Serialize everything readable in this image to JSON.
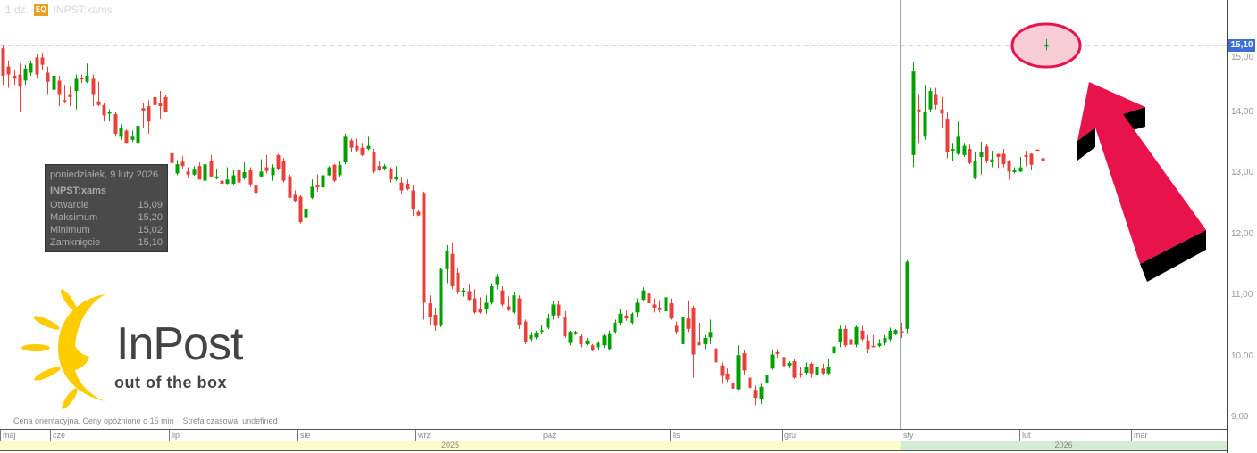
{
  "header": {
    "interval": "1 dz.",
    "badge": "EQ",
    "symbol": "INPST:xams"
  },
  "tooltip": {
    "date": "poniedziałek, 9 luty 2026",
    "symbol": "INPST:xams",
    "rows": [
      {
        "label": "Otwarcie",
        "value": "15,09"
      },
      {
        "label": "Maksimum",
        "value": "15,20"
      },
      {
        "label": "Minimum",
        "value": "15,02"
      },
      {
        "label": "Zamknięcie",
        "value": "15,10"
      }
    ]
  },
  "footer_note": "Cena orientacyjna. Ceny opóźnione o 15 min    Strefa czasowa: undefined",
  "logo": {
    "name": "InPost",
    "tagline": "out of the box"
  },
  "colors": {
    "up": "#00a000",
    "down": "#e8403a",
    "price_line": "#e8403a",
    "price_tag": "#3d6fd6",
    "annotation": "#e8134a",
    "logo_sun": "#ffcc00"
  },
  "chart_data": {
    "type": "candlestick",
    "ylim": [
      8.8,
      15.6
    ],
    "y_ticks": [
      "15,00",
      "14,00",
      "13,00",
      "12,00",
      "11,00",
      "10,00",
      "9,00"
    ],
    "y_tick_values": [
      15,
      14,
      13,
      12,
      11,
      10,
      9
    ],
    "last_price": 15.1,
    "last_price_label": "15,10",
    "months": [
      "maj",
      "cze",
      "lip",
      "sie",
      "wrz",
      "paź",
      "lis",
      "gru",
      "sty",
      "lut",
      "mar"
    ],
    "years": [
      "2025",
      "2026"
    ],
    "candles_2025": [
      [
        15.05,
        15.1,
        14.45,
        14.6
      ],
      [
        14.75,
        14.85,
        14.4,
        14.62
      ],
      [
        14.6,
        14.7,
        14.45,
        14.55
      ],
      [
        14.62,
        14.8,
        14.0,
        14.42
      ],
      [
        14.52,
        14.78,
        14.45,
        14.72
      ],
      [
        14.65,
        14.85,
        14.6,
        14.8
      ],
      [
        14.9,
        14.95,
        14.55,
        14.62
      ],
      [
        14.9,
        14.98,
        14.7,
        14.78
      ],
      [
        14.65,
        14.75,
        14.3,
        14.5
      ],
      [
        14.37,
        14.75,
        14.3,
        14.6
      ],
      [
        14.52,
        14.6,
        14.1,
        14.3
      ],
      [
        14.2,
        14.45,
        14.15,
        14.18
      ],
      [
        14.3,
        14.42,
        14.1,
        14.25
      ],
      [
        14.35,
        14.62,
        14.05,
        14.55
      ],
      [
        14.56,
        14.62,
        14.48,
        14.54
      ],
      [
        14.5,
        14.8,
        14.48,
        14.6
      ],
      [
        14.55,
        14.62,
        14.1,
        14.3
      ],
      [
        14.18,
        14.5,
        14.1,
        14.12
      ],
      [
        14.12,
        14.15,
        13.85,
        13.95
      ],
      [
        13.98,
        14.05,
        13.85,
        14.0
      ],
      [
        13.97,
        14.0,
        13.6,
        13.65
      ],
      [
        13.6,
        13.8,
        13.55,
        13.75
      ],
      [
        13.7,
        13.72,
        13.5,
        13.5
      ],
      [
        13.55,
        13.7,
        13.52,
        13.6
      ],
      [
        13.5,
        13.82,
        13.5,
        13.78
      ],
      [
        14.07,
        14.15,
        13.75,
        14.03
      ],
      [
        14.1,
        14.2,
        13.65,
        13.85
      ],
      [
        14.25,
        14.35,
        13.8,
        14.12
      ],
      [
        14.15,
        14.35,
        13.9,
        14.1
      ],
      [
        14.25,
        14.28,
        14.0,
        14.0
      ],
      [
        13.33,
        13.5,
        13.15,
        13.17
      ],
      [
        13.0,
        13.22,
        12.97,
        13.15
      ],
      [
        13.19,
        13.28,
        13.08,
        13.12
      ],
      [
        13.03,
        13.1,
        12.92,
        12.98
      ],
      [
        12.98,
        13.12,
        12.96,
        13.06
      ],
      [
        13.12,
        13.18,
        12.9,
        12.9
      ],
      [
        12.88,
        13.25,
        12.86,
        13.15
      ],
      [
        13.2,
        13.3,
        12.93,
        12.95
      ],
      [
        12.92,
        13.07,
        12.9,
        12.95
      ],
      [
        12.88,
        12.92,
        12.72,
        12.83
      ],
      [
        12.83,
        13.1,
        12.82,
        12.9
      ],
      [
        12.83,
        13.05,
        12.81,
        12.97
      ],
      [
        13.05,
        13.06,
        12.84,
        12.85
      ],
      [
        12.92,
        13.18,
        12.9,
        13.02
      ],
      [
        13.05,
        13.1,
        12.78,
        12.82
      ],
      [
        12.8,
        12.88,
        12.68,
        12.68
      ],
      [
        12.95,
        13.23,
        12.93,
        13.03
      ],
      [
        13.1,
        13.3,
        13.0,
        13.04
      ],
      [
        12.97,
        13.15,
        12.88,
        13.1
      ],
      [
        13.3,
        13.32,
        13.05,
        13.07
      ],
      [
        13.2,
        13.25,
        12.85,
        12.88
      ],
      [
        12.95,
        12.98,
        12.6,
        12.6
      ],
      [
        12.65,
        12.72,
        12.52,
        12.55
      ],
      [
        12.62,
        12.64,
        12.18,
        12.2
      ],
      [
        12.28,
        12.5,
        12.25,
        12.42
      ],
      [
        12.6,
        12.9,
        12.58,
        12.78
      ],
      [
        12.8,
        12.98,
        12.7,
        12.77
      ],
      [
        12.77,
        13.22,
        12.75,
        12.97
      ],
      [
        12.97,
        13.12,
        12.96,
        13.1
      ],
      [
        13.14,
        13.16,
        12.86,
        12.88
      ],
      [
        12.97,
        13.2,
        12.95,
        13.14
      ],
      [
        13.18,
        13.65,
        13.15,
        13.6
      ],
      [
        13.54,
        13.57,
        13.35,
        13.42
      ],
      [
        13.45,
        13.57,
        13.35,
        13.38
      ],
      [
        13.42,
        13.5,
        13.28,
        13.3
      ],
      [
        13.4,
        13.6,
        13.38,
        13.45
      ],
      [
        13.35,
        13.4,
        13.0,
        13.03
      ],
      [
        13.12,
        13.2,
        13.04,
        13.05
      ],
      [
        13.08,
        13.15,
        13.05,
        13.12
      ],
      [
        13.07,
        13.1,
        12.85,
        12.9
      ],
      [
        12.9,
        13.12,
        12.88,
        12.95
      ],
      [
        12.85,
        12.93,
        12.67,
        12.72
      ],
      [
        12.83,
        12.9,
        12.72,
        12.74
      ],
      [
        12.72,
        12.8,
        12.3,
        12.42
      ],
      [
        12.37,
        12.4,
        12.3,
        12.31
      ],
      [
        12.68,
        12.7,
        10.6,
        10.88
      ],
      [
        10.87,
        11.0,
        10.52,
        10.65
      ],
      [
        10.68,
        10.8,
        10.42,
        10.5
      ],
      [
        10.5,
        11.45,
        10.48,
        11.43
      ],
      [
        11.43,
        11.82,
        11.2,
        11.73
      ],
      [
        11.68,
        11.87,
        11.1,
        11.15
      ],
      [
        11.37,
        11.45,
        11.02,
        11.05
      ],
      [
        11.05,
        11.12,
        10.98,
        11.08
      ],
      [
        11.07,
        11.18,
        10.9,
        10.93
      ],
      [
        10.95,
        11.1,
        10.7,
        10.72
      ],
      [
        10.78,
        10.97,
        10.7,
        10.72
      ],
      [
        10.78,
        11.0,
        10.7,
        10.88
      ],
      [
        10.88,
        11.2,
        10.85,
        11.15
      ],
      [
        11.17,
        11.35,
        11.1,
        11.3
      ],
      [
        11.08,
        11.15,
        10.82,
        10.85
      ],
      [
        10.82,
        10.98,
        10.74,
        10.76
      ],
      [
        10.72,
        11.05,
        10.7,
        11.0
      ],
      [
        10.95,
        11.0,
        10.45,
        10.52
      ],
      [
        10.57,
        10.6,
        10.2,
        10.23
      ],
      [
        10.28,
        10.4,
        10.25,
        10.35
      ],
      [
        10.31,
        10.42,
        10.28,
        10.39
      ],
      [
        10.4,
        10.52,
        10.36,
        10.43
      ],
      [
        10.47,
        10.7,
        10.45,
        10.62
      ],
      [
        10.67,
        10.9,
        10.6,
        10.85
      ],
      [
        10.85,
        10.92,
        10.62,
        10.67
      ],
      [
        10.64,
        10.74,
        10.3,
        10.33
      ],
      [
        10.22,
        10.42,
        10.18,
        10.4
      ],
      [
        10.38,
        10.42,
        10.35,
        10.4
      ],
      [
        10.33,
        10.37,
        10.15,
        10.2
      ],
      [
        10.2,
        10.3,
        10.18,
        10.26
      ],
      [
        10.18,
        10.2,
        10.08,
        10.1
      ],
      [
        10.15,
        10.25,
        10.1,
        10.22
      ],
      [
        10.18,
        10.37,
        10.14,
        10.34
      ],
      [
        10.12,
        10.42,
        10.1,
        10.38
      ],
      [
        10.4,
        10.6,
        10.38,
        10.55
      ],
      [
        10.55,
        10.78,
        10.5,
        10.7
      ],
      [
        10.67,
        10.75,
        10.58,
        10.62
      ],
      [
        10.55,
        10.72,
        10.53,
        10.7
      ],
      [
        10.72,
        10.95,
        10.65,
        10.88
      ],
      [
        10.93,
        11.13,
        10.9,
        11.08
      ],
      [
        11.03,
        11.2,
        10.85,
        10.87
      ],
      [
        10.85,
        10.95,
        10.72,
        10.8
      ],
      [
        10.8,
        10.92,
        10.72,
        10.76
      ],
      [
        10.74,
        11.05,
        10.72,
        10.97
      ],
      [
        10.87,
        10.95,
        10.6,
        10.62
      ],
      [
        10.5,
        10.57,
        10.36,
        10.4
      ],
      [
        10.2,
        10.72,
        10.18,
        10.65
      ],
      [
        10.62,
        10.92,
        10.4,
        10.45
      ],
      [
        10.8,
        10.83,
        9.65,
        10.03
      ],
      [
        10.24,
        10.55,
        10.18,
        10.18
      ],
      [
        10.2,
        10.35,
        10.12,
        10.3
      ],
      [
        10.31,
        10.6,
        10.2,
        10.4
      ],
      [
        10.13,
        10.2,
        9.85,
        9.9
      ],
      [
        9.85,
        9.9,
        9.55,
        9.68
      ],
      [
        9.72,
        9.8,
        9.58,
        9.62
      ],
      [
        9.57,
        9.68,
        9.45,
        9.47
      ],
      [
        9.46,
        10.18,
        9.45,
        10.02
      ],
      [
        10.05,
        10.1,
        9.7,
        9.77
      ],
      [
        9.65,
        9.82,
        9.4,
        9.48
      ],
      [
        9.45,
        9.52,
        9.2,
        9.32
      ],
      [
        9.3,
        9.55,
        9.22,
        9.5
      ],
      [
        9.57,
        9.75,
        9.55,
        9.7
      ],
      [
        9.8,
        10.1,
        9.78,
        10.03
      ],
      [
        10.07,
        10.12,
        9.97,
        10.04
      ],
      [
        9.99,
        10.05,
        9.82,
        9.84
      ],
      [
        9.85,
        9.92,
        9.8,
        9.89
      ],
      [
        9.92,
        9.95,
        9.63,
        9.65
      ],
      [
        9.72,
        9.82,
        9.65,
        9.7
      ],
      [
        9.73,
        9.9,
        9.7,
        9.83
      ],
      [
        9.88,
        9.9,
        9.65,
        9.72
      ],
      [
        9.7,
        9.88,
        9.65,
        9.83
      ],
      [
        9.8,
        9.88,
        9.7,
        9.72
      ],
      [
        9.72,
        9.95,
        9.7,
        9.83
      ],
      [
        10.05,
        10.25,
        10.03,
        10.16
      ],
      [
        10.23,
        10.5,
        10.15,
        10.45
      ],
      [
        10.45,
        10.5,
        10.15,
        10.18
      ],
      [
        10.28,
        10.35,
        10.12,
        10.19
      ],
      [
        10.19,
        10.5,
        10.15,
        10.48
      ],
      [
        10.42,
        10.5,
        10.25,
        10.28
      ],
      [
        10.26,
        10.35,
        10.05,
        10.12
      ],
      [
        10.17,
        10.35,
        10.15,
        10.16
      ],
      [
        10.17,
        10.28,
        10.15,
        10.21
      ],
      [
        10.22,
        10.35,
        10.18,
        10.3
      ],
      [
        10.28,
        10.47,
        10.25,
        10.42
      ],
      [
        10.37,
        10.45,
        10.35,
        10.43
      ],
      [
        10.41,
        10.55,
        10.3,
        10.39
      ],
      [
        10.45,
        11.58,
        10.38,
        11.55
      ]
    ],
    "candles_2026": [
      [
        13.3,
        14.82,
        13.1,
        14.67
      ],
      [
        14.05,
        14.3,
        13.5,
        14.0
      ],
      [
        13.6,
        14.45,
        13.55,
        14.0
      ],
      [
        14.05,
        14.4,
        14.0,
        14.35
      ],
      [
        14.3,
        14.4,
        14.05,
        14.12
      ],
      [
        14.05,
        14.25,
        13.75,
        13.98
      ],
      [
        13.88,
        14.0,
        13.25,
        13.35
      ],
      [
        13.37,
        13.5,
        13.2,
        13.4
      ],
      [
        13.32,
        13.85,
        13.3,
        13.6
      ],
      [
        13.3,
        13.5,
        13.27,
        13.45
      ],
      [
        13.4,
        13.47,
        13.15,
        13.17
      ],
      [
        12.92,
        13.35,
        12.9,
        13.2
      ],
      [
        13.27,
        13.52,
        12.98,
        13.35
      ],
      [
        13.44,
        13.48,
        13.17,
        13.2
      ],
      [
        13.18,
        13.37,
        13.1,
        13.23
      ],
      [
        13.32,
        13.32,
        13.09,
        13.27
      ],
      [
        13.32,
        13.4,
        13.1,
        13.15
      ],
      [
        13.2,
        13.22,
        12.9,
        13.03
      ],
      [
        13.02,
        13.1,
        13.0,
        13.05
      ],
      [
        13.03,
        13.27,
        13.02,
        13.1
      ],
      [
        13.3,
        13.37,
        13.12,
        13.27
      ],
      [
        13.32,
        13.33,
        13.05,
        13.14
      ],
      [
        13.39,
        13.39,
        13.38,
        13.38
      ],
      [
        13.25,
        13.3,
        13.0,
        13.2
      ]
    ],
    "highlighted_candle": [
      15.09,
      15.2,
      15.02,
      15.1
    ]
  }
}
